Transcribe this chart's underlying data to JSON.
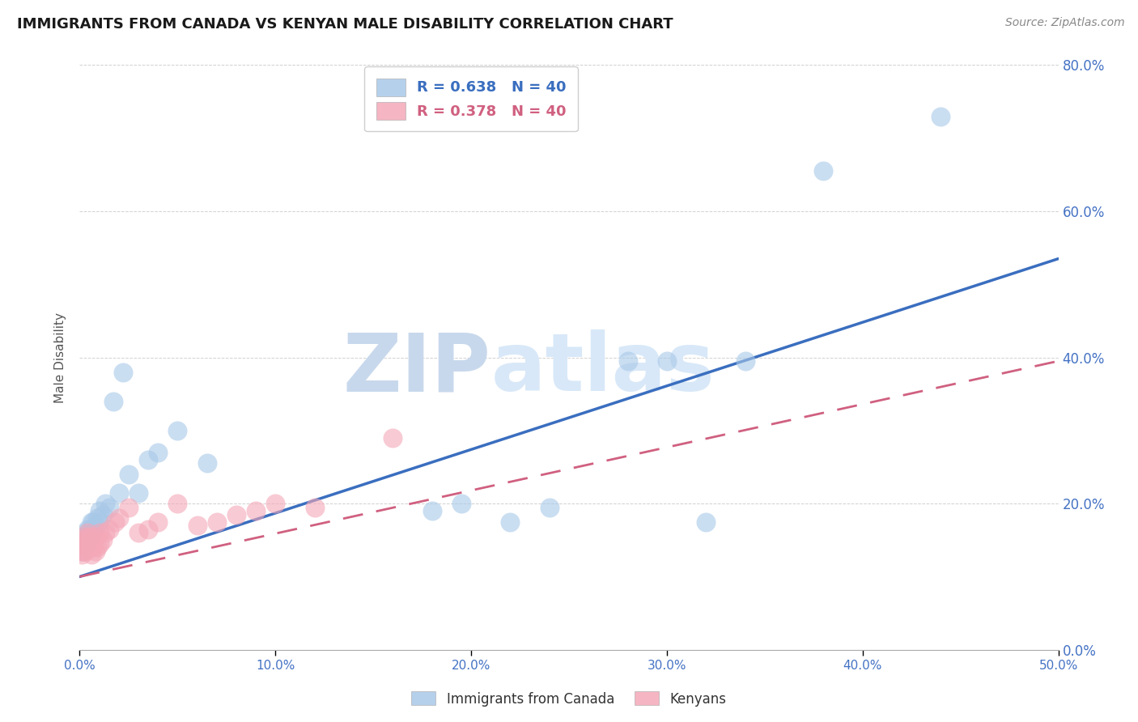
{
  "title": "IMMIGRANTS FROM CANADA VS KENYAN MALE DISABILITY CORRELATION CHART",
  "source": "Source: ZipAtlas.com",
  "ylabel": "Male Disability",
  "legend_label1": "Immigrants from Canada",
  "legend_label2": "Kenyans",
  "R1": 0.638,
  "N1": 40,
  "R2": 0.378,
  "N2": 40,
  "xlim": [
    0.0,
    0.5
  ],
  "ylim": [
    0.0,
    0.8
  ],
  "xticks": [
    0.0,
    0.1,
    0.2,
    0.3,
    0.4,
    0.5
  ],
  "yticks": [
    0.0,
    0.2,
    0.4,
    0.6,
    0.8
  ],
  "color_blue": "#A8C8E8",
  "color_pink": "#F4A8B8",
  "color_trend_blue": "#3A6EBF",
  "color_trend_pink": "#D06080",
  "watermark_zip": "ZIP",
  "watermark_atlas": "atlas",
  "blue_x": [
    0.001,
    0.001,
    0.002,
    0.002,
    0.003,
    0.003,
    0.004,
    0.004,
    0.005,
    0.005,
    0.006,
    0.006,
    0.007,
    0.007,
    0.008,
    0.009,
    0.01,
    0.01,
    0.012,
    0.013,
    0.015,
    0.017,
    0.02,
    0.022,
    0.025,
    0.03,
    0.035,
    0.04,
    0.05,
    0.065,
    0.18,
    0.195,
    0.22,
    0.24,
    0.28,
    0.3,
    0.32,
    0.34,
    0.38,
    0.44
  ],
  "blue_y": [
    0.135,
    0.145,
    0.14,
    0.155,
    0.145,
    0.16,
    0.15,
    0.165,
    0.155,
    0.165,
    0.16,
    0.175,
    0.165,
    0.175,
    0.17,
    0.18,
    0.175,
    0.19,
    0.185,
    0.2,
    0.195,
    0.34,
    0.215,
    0.38,
    0.24,
    0.215,
    0.26,
    0.27,
    0.3,
    0.255,
    0.19,
    0.2,
    0.175,
    0.195,
    0.395,
    0.395,
    0.175,
    0.395,
    0.655,
    0.73
  ],
  "pink_x": [
    0.001,
    0.001,
    0.001,
    0.002,
    0.002,
    0.002,
    0.003,
    0.003,
    0.003,
    0.004,
    0.004,
    0.004,
    0.005,
    0.005,
    0.006,
    0.006,
    0.007,
    0.007,
    0.008,
    0.008,
    0.009,
    0.01,
    0.01,
    0.012,
    0.013,
    0.015,
    0.018,
    0.02,
    0.025,
    0.03,
    0.035,
    0.04,
    0.05,
    0.06,
    0.07,
    0.08,
    0.09,
    0.1,
    0.12,
    0.16
  ],
  "pink_y": [
    0.13,
    0.135,
    0.145,
    0.135,
    0.14,
    0.15,
    0.135,
    0.145,
    0.155,
    0.14,
    0.15,
    0.16,
    0.145,
    0.155,
    0.13,
    0.145,
    0.14,
    0.15,
    0.135,
    0.155,
    0.14,
    0.145,
    0.16,
    0.15,
    0.16,
    0.165,
    0.175,
    0.18,
    0.195,
    0.16,
    0.165,
    0.175,
    0.2,
    0.17,
    0.175,
    0.185,
    0.19,
    0.2,
    0.195,
    0.29
  ],
  "trend_blue_x0": 0.0,
  "trend_blue_y0": 0.1,
  "trend_blue_x1": 0.5,
  "trend_blue_y1": 0.535,
  "trend_pink_x0": 0.0,
  "trend_pink_y0": 0.1,
  "trend_pink_x1": 0.5,
  "trend_pink_y1": 0.395
}
